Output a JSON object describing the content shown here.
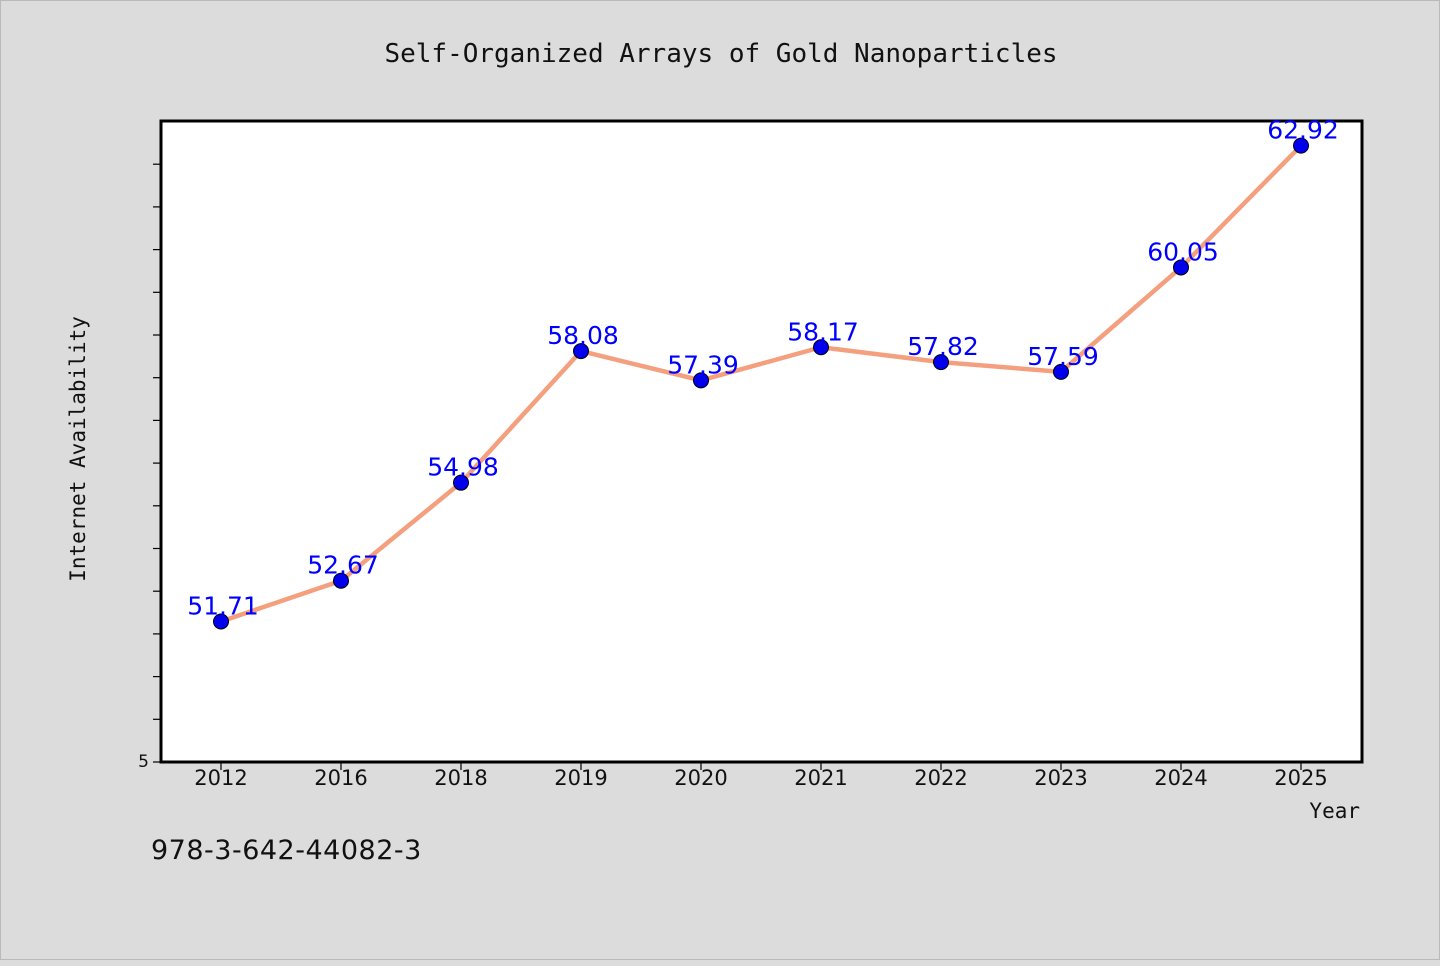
{
  "chart_data": {
    "type": "line",
    "title": "Self-Organized Arrays of Gold Nanoparticles",
    "xlabel": "Year",
    "ylabel": "Internet Availability",
    "categories": [
      "2012",
      "2016",
      "2018",
      "2019",
      "2020",
      "2021",
      "2022",
      "2023",
      "2024",
      "2025"
    ],
    "series": [
      {
        "values": [
          51.71,
          52.67,
          54.98,
          58.08,
          57.39,
          58.17,
          57.82,
          57.59,
          60.05,
          62.92
        ],
        "labels": [
          "51.71",
          "52.67",
          "54.98",
          "58.08",
          "57.39",
          "58.17",
          "57.82",
          "57.59",
          "60.05",
          "62.92"
        ]
      }
    ],
    "ylim": [
      48.4,
      63.5
    ],
    "y_tick_label": "5",
    "grid": false,
    "colors": {
      "line": "#f4a07e",
      "marker": "#0000ee",
      "data_label": "#0000ff",
      "plot_background": "#ffffff",
      "page_background": "#dcdcdc"
    }
  },
  "footer": {
    "isbn": "978-3-642-44082-3"
  }
}
